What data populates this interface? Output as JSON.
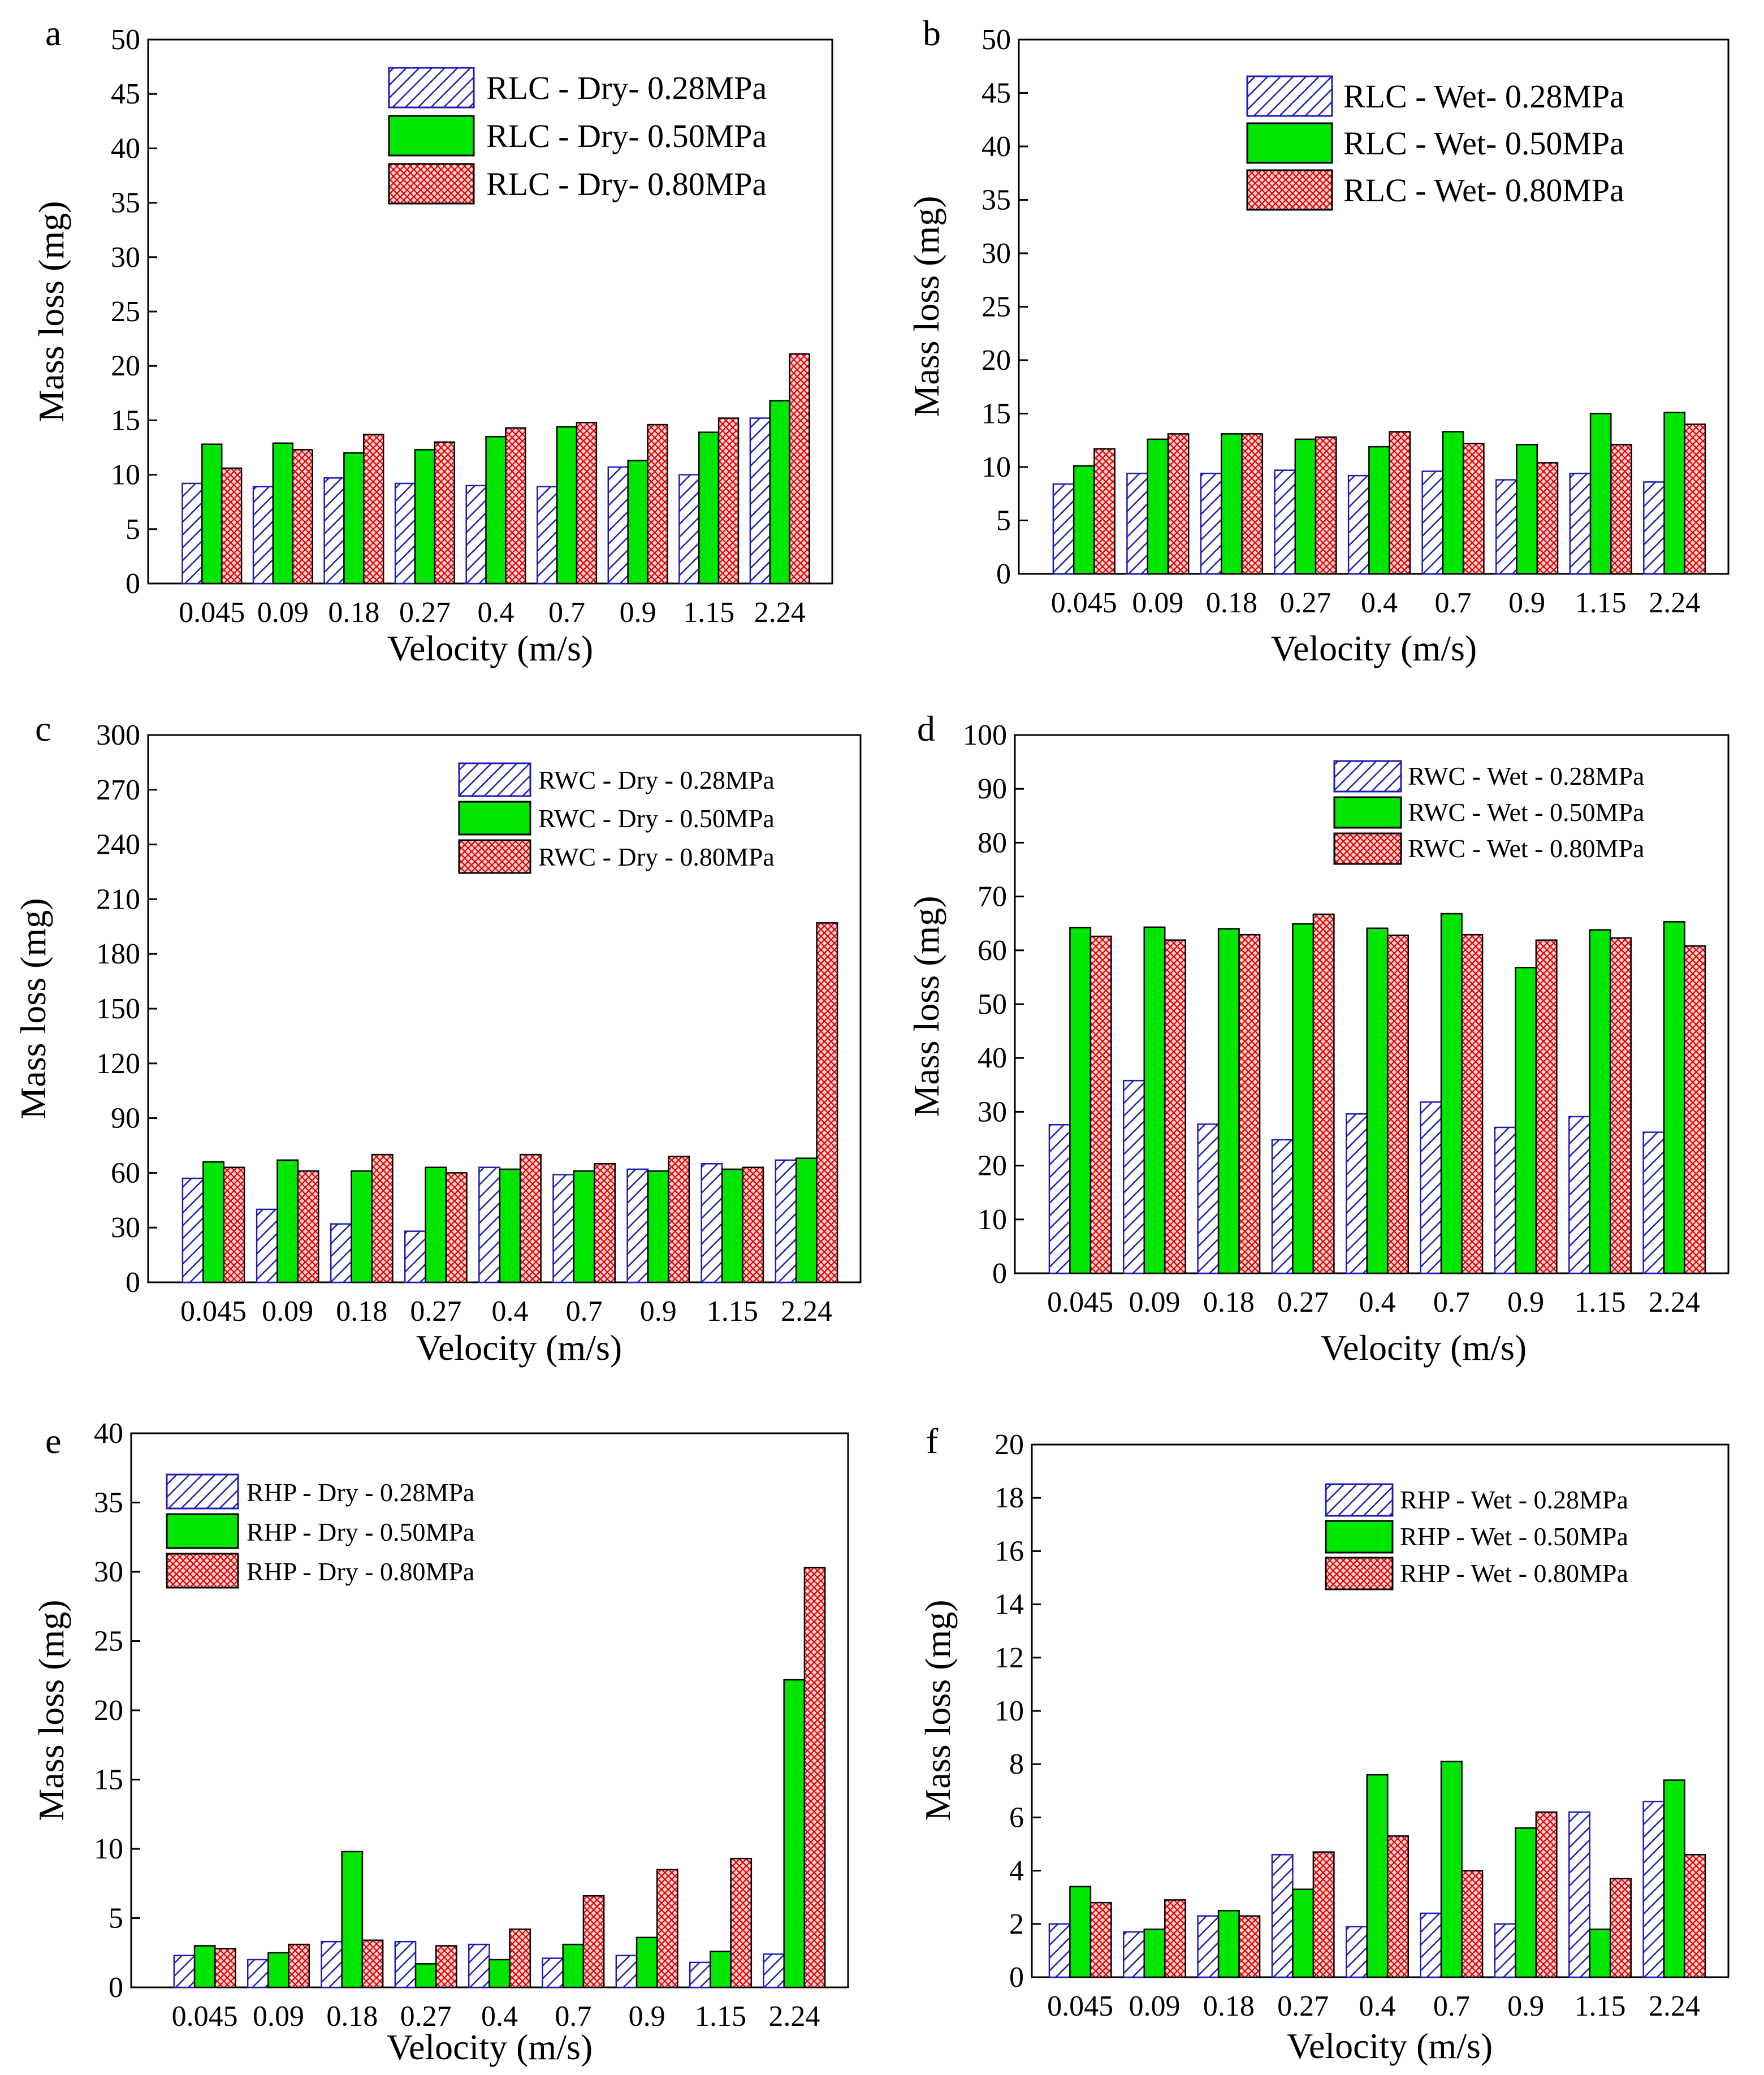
{
  "figure": {
    "colors": {
      "series_1_stroke": "#1c1cb4",
      "series_1_fill": "#ffffff",
      "series_2_fill": "#00e600",
      "series_3_stroke": "#e00000",
      "series_3_fill": "#fbd2d2",
      "axis": "#000000"
    }
  },
  "chart_data": [
    {
      "panel": "a",
      "type": "bar",
      "categories": [
        "0.045",
        "0.09",
        "0.18",
        "0.27",
        "0.4",
        "0.7",
        "0.9",
        "1.15",
        "2.24"
      ],
      "series": [
        {
          "name": "RLC - Dry- 0.28MPa",
          "values": [
            9.2,
            8.9,
            9.7,
            9.2,
            9.0,
            8.9,
            10.7,
            10.0,
            15.2
          ]
        },
        {
          "name": "RLC - Dry- 0.50MPa",
          "values": [
            12.8,
            12.9,
            12.0,
            12.3,
            13.5,
            14.4,
            11.3,
            13.9,
            16.8
          ]
        },
        {
          "name": "RLC - Dry- 0.80MPa",
          "values": [
            10.6,
            12.3,
            13.7,
            13.0,
            14.3,
            14.8,
            14.6,
            15.2,
            21.1
          ]
        }
      ],
      "xlabel": "Velocity (m/s)",
      "ylabel": "Mass loss (mg)",
      "ylim": [
        0,
        50
      ],
      "yticks": [
        "0",
        "5",
        "10",
        "15",
        "20",
        "25",
        "30",
        "35",
        "40",
        "45",
        "50"
      ],
      "legend_position": "top-right"
    },
    {
      "panel": "b",
      "type": "bar",
      "categories": [
        "0.045",
        "0.09",
        "0.18",
        "0.27",
        "0.4",
        "0.7",
        "0.9",
        "1.15",
        "2.24"
      ],
      "series": [
        {
          "name": "RLC - Wet- 0.28MPa",
          "values": [
            8.4,
            9.4,
            9.4,
            9.7,
            9.2,
            9.6,
            8.8,
            9.4,
            8.6
          ]
        },
        {
          "name": "RLC - Wet- 0.50MPa",
          "values": [
            10.1,
            12.6,
            13.1,
            12.6,
            11.9,
            13.3,
            12.1,
            15.0,
            15.1
          ]
        },
        {
          "name": "RLC - Wet- 0.80MPa",
          "values": [
            11.7,
            13.1,
            13.1,
            12.8,
            13.3,
            12.2,
            10.4,
            12.1,
            14.0
          ]
        }
      ],
      "xlabel": "Velocity (m/s)",
      "ylabel": "Mass loss (mg)",
      "ylim": [
        0,
        50
      ],
      "yticks": [
        "0",
        "5",
        "10",
        "15",
        "20",
        "25",
        "30",
        "35",
        "40",
        "45",
        "50"
      ],
      "legend_position": "top-right"
    },
    {
      "panel": "c",
      "type": "bar",
      "categories": [
        "0.045",
        "0.09",
        "0.18",
        "0.27",
        "0.4",
        "0.7",
        "0.9",
        "1.15",
        "2.24"
      ],
      "series": [
        {
          "name": "RWC - Dry - 0.28MPa",
          "values": [
            57,
            40,
            32,
            28,
            63,
            59,
            62,
            65,
            67
          ]
        },
        {
          "name": "RWC - Dry - 0.50MPa",
          "values": [
            66,
            67,
            61,
            63,
            62,
            61,
            61,
            62,
            68
          ]
        },
        {
          "name": "RWC - Dry - 0.80MPa",
          "values": [
            63,
            61,
            70,
            60,
            70,
            65,
            69,
            63,
            197
          ]
        }
      ],
      "xlabel": "Velocity (m/s)",
      "ylabel": "Mass loss (mg)",
      "ylim": [
        0,
        300
      ],
      "yticks": [
        "0",
        "30",
        "60",
        "90",
        "120",
        "150",
        "180",
        "210",
        "240",
        "270",
        "300"
      ],
      "legend_position": "top-right"
    },
    {
      "panel": "d",
      "type": "bar",
      "categories": [
        "0.045",
        "0.09",
        "0.18",
        "0.27",
        "0.4",
        "0.7",
        "0.9",
        "1.15",
        "2.24"
      ],
      "series": [
        {
          "name": "RWC - Wet - 0.28MPa",
          "values": [
            27.6,
            35.8,
            27.7,
            24.8,
            29.6,
            31.8,
            27.1,
            29.1,
            26.2
          ]
        },
        {
          "name": "RWC - Wet - 0.50MPa",
          "values": [
            64.2,
            64.3,
            64.0,
            64.9,
            64.1,
            66.8,
            56.8,
            63.8,
            65.3
          ]
        },
        {
          "name": "RWC - Wet - 0.80MPa",
          "values": [
            62.6,
            61.9,
            62.9,
            66.7,
            62.8,
            62.9,
            61.9,
            62.3,
            60.8
          ]
        }
      ],
      "xlabel": "Velocity (m/s)",
      "ylabel": "Mass loss (mg)",
      "ylim": [
        0,
        100
      ],
      "yticks": [
        "0",
        "10",
        "20",
        "30",
        "40",
        "50",
        "60",
        "70",
        "80",
        "90",
        "100"
      ],
      "legend_position": "top-right"
    },
    {
      "panel": "e",
      "type": "bar",
      "categories": [
        "0.045",
        "0.09",
        "0.18",
        "0.27",
        "0.4",
        "0.7",
        "0.9",
        "1.15",
        "2.24"
      ],
      "series": [
        {
          "name": "RHP - Dry - 0.28MPa",
          "values": [
            2.3,
            2.0,
            3.3,
            3.3,
            3.1,
            2.1,
            2.3,
            1.8,
            2.4
          ]
        },
        {
          "name": "RHP - Dry - 0.50MPa",
          "values": [
            3.0,
            2.5,
            9.8,
            1.7,
            2.0,
            3.1,
            3.6,
            2.6,
            22.2
          ]
        },
        {
          "name": "RHP - Dry - 0.80MPa",
          "values": [
            2.8,
            3.1,
            3.4,
            3.0,
            4.2,
            6.6,
            8.5,
            9.3,
            30.3
          ]
        }
      ],
      "xlabel": "Velocity (m/s)",
      "ylabel": "Mass loss (mg)",
      "ylim": [
        0,
        40
      ],
      "yticks": [
        "0",
        "5",
        "10",
        "15",
        "20",
        "25",
        "30",
        "35",
        "40"
      ],
      "legend_position": "top-left"
    },
    {
      "panel": "f",
      "type": "bar",
      "categories": [
        "0.045",
        "0.09",
        "0.18",
        "0.27",
        "0.4",
        "0.7",
        "0.9",
        "1.15",
        "2.24"
      ],
      "series": [
        {
          "name": "RHP - Wet - 0.28MPa",
          "values": [
            2.0,
            1.7,
            2.3,
            4.6,
            1.9,
            2.4,
            2.0,
            6.2,
            6.6
          ]
        },
        {
          "name": "RHP - Wet - 0.50MPa",
          "values": [
            3.4,
            1.8,
            2.5,
            3.3,
            7.6,
            8.1,
            5.6,
            1.8,
            7.4
          ]
        },
        {
          "name": "RHP - Wet - 0.80MPa",
          "values": [
            2.8,
            2.9,
            2.3,
            4.7,
            5.3,
            4.0,
            6.2,
            3.7,
            4.6
          ]
        }
      ],
      "xlabel": "Velocity (m/s)",
      "ylabel": "Mass loss (mg)",
      "ylim": [
        0,
        20
      ],
      "yticks": [
        "0",
        "2",
        "4",
        "6",
        "8",
        "10",
        "12",
        "14",
        "16",
        "18",
        "20"
      ],
      "legend_position": "top-right"
    }
  ]
}
